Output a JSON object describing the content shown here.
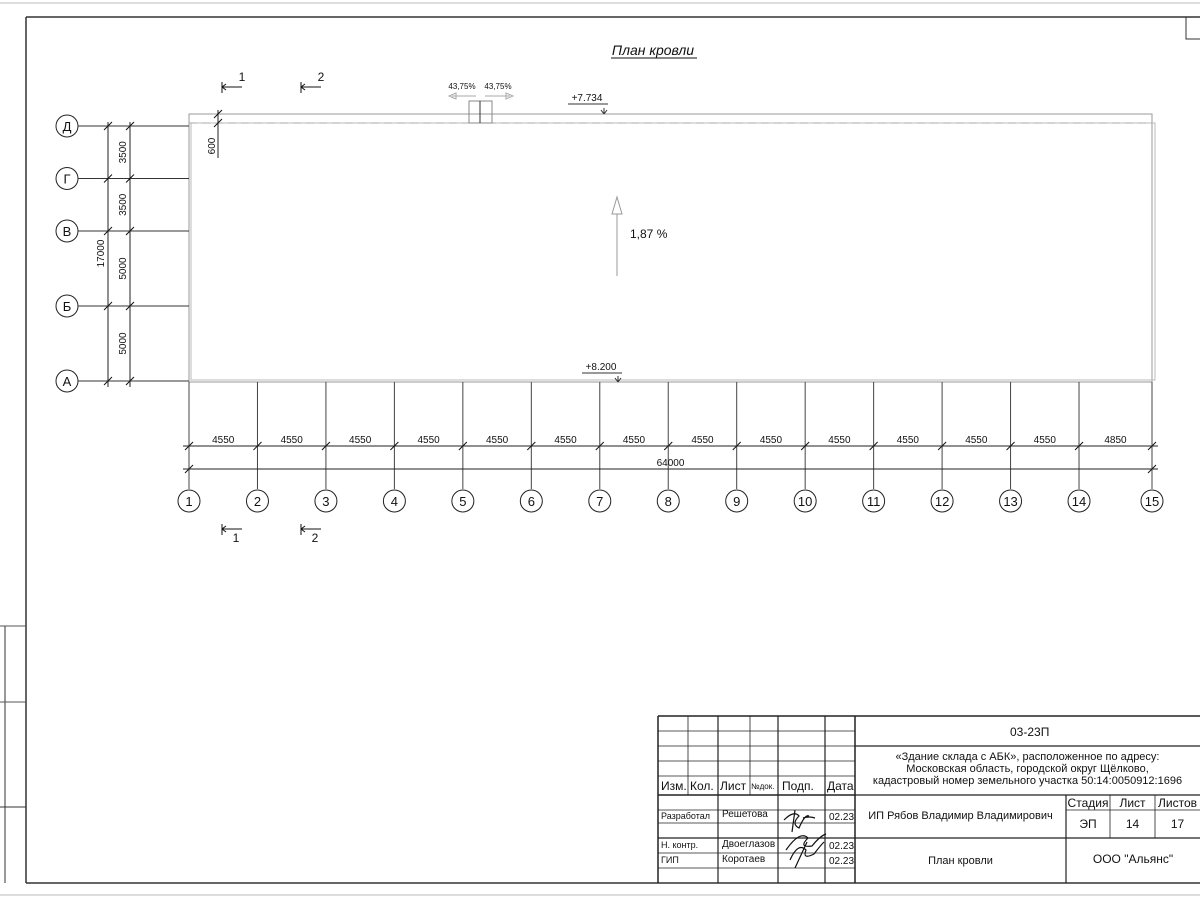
{
  "drawing": {
    "title": "План кровли",
    "row_axes": [
      {
        "label": "Д",
        "span_to_next": 3500
      },
      {
        "label": "Г",
        "span_to_next": 3500
      },
      {
        "label": "В",
        "span_to_next": 5000
      },
      {
        "label": "Б",
        "span_to_next": 5000
      },
      {
        "label": "А"
      }
    ],
    "row_total": "17000",
    "row_spans_text": [
      "3500",
      "3500",
      "5000",
      "5000"
    ],
    "column_axes": [
      "1",
      "2",
      "3",
      "4",
      "5",
      "6",
      "7",
      "8",
      "9",
      "10",
      "11",
      "12",
      "13",
      "14",
      "15"
    ],
    "column_spans": [
      4550,
      4550,
      4550,
      4550,
      4550,
      4550,
      4550,
      4550,
      4550,
      4550,
      4550,
      4550,
      4550,
      4850
    ],
    "column_spans_text": [
      "4550",
      "4550",
      "4550",
      "4550",
      "4550",
      "4550",
      "4550",
      "4550",
      "4550",
      "4550",
      "4550",
      "4550",
      "4550",
      "4850"
    ],
    "column_total": "64000",
    "parapet_dim": "600",
    "elevation_top": "+7.734",
    "elevation_bottom": "+8.200",
    "slope": "1,87 %",
    "vent_slope_left": "43,75%",
    "vent_slope_right": "43,75%",
    "section_marks": [
      "1",
      "2"
    ]
  },
  "title_block": {
    "code": "03-23П",
    "project": [
      "«Здание склада с АБК», расположенное по адресу:",
      "Московская область, городской округ Щёлково,",
      "кадастровый номер земельного участка 50:14:0050912:1696"
    ],
    "headers": {
      "izm": "Изм.",
      "kol": "Кол.",
      "list": "Лист",
      "ndok": "№док.",
      "podp": "Подп.",
      "data": "Дата"
    },
    "rows": [
      {
        "role": "Разработал",
        "name": "Решетова",
        "date": "02.23"
      },
      {
        "role": "Н. контр.",
        "name": "Двоеглазов",
        "date": "02.23"
      },
      {
        "role": "ГИП",
        "name": "Коротаев",
        "date": "02.23"
      }
    ],
    "author": "ИП Рябов Владимир Владимирович",
    "stage_label": "Стадия",
    "sheet_label": "Лист",
    "sheets_label": "Листов",
    "stage": "ЭП",
    "sheet": "14",
    "sheets": "17",
    "sheet_title": "План кровли",
    "company": "ООО \"Альянс\""
  }
}
